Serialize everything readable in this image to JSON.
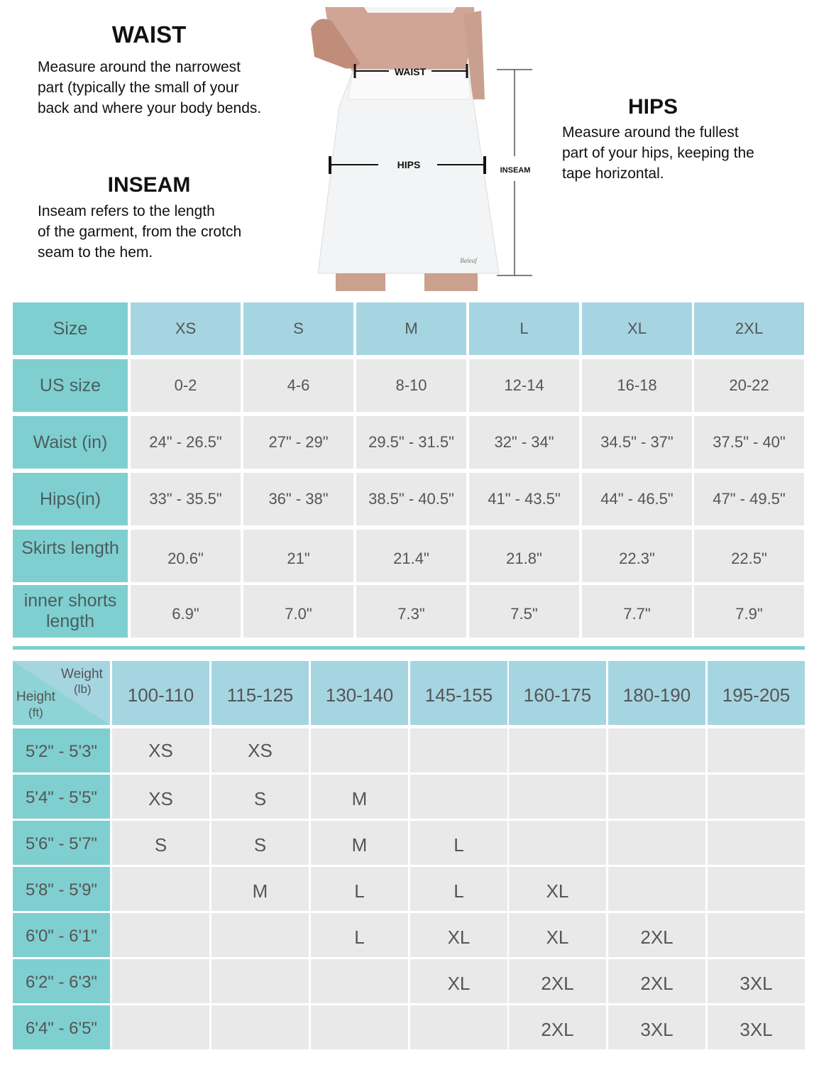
{
  "waist": {
    "title": "WAIST",
    "lines": [
      "Measure around the narrowest",
      "part (typically the small of your",
      "back and where your body bends."
    ]
  },
  "inseam": {
    "title": "INSEAM",
    "lines": [
      "Inseam refers to the length",
      "of the garment, from the crotch",
      "seam to the hem."
    ]
  },
  "hips": {
    "title": "HIPS",
    "lines": [
      "Measure around the fullest",
      "part of your hips, keeping the",
      "tape horizontal."
    ]
  },
  "figure": {
    "waist_label": "WAIST",
    "hips_label": "HIPS",
    "inseam_label": "INSEAM",
    "brand_mark": "Baleaf",
    "skirt_color": "#f4f5f6",
    "skin_color": "#c89a86"
  },
  "size_table": {
    "row_labels": [
      "Size",
      "US size",
      "Waist (in)",
      "Hips(in)",
      "Skirts length",
      "inner shorts length"
    ],
    "sizes": [
      "XS",
      "S",
      "M",
      "L",
      "XL",
      "2XL"
    ],
    "rows": [
      [
        "0-2",
        "4-6",
        "8-10",
        "12-14",
        "16-18",
        "20-22"
      ],
      [
        "24\" - 26.5\"",
        "27\" - 29\"",
        "29.5\" - 31.5\"",
        "32\" - 34\"",
        "34.5\" - 37\"",
        "37.5\" - 40\""
      ],
      [
        "33\" - 35.5\"",
        "36\" - 38\"",
        "38.5\" - 40.5\"",
        "41\" - 43.5\"",
        "44\" - 46.5\"",
        "47\" - 49.5\""
      ],
      [
        "20.6\"",
        "21\"",
        "21.4\"",
        "21.8\"",
        "22.3\"",
        "22.5\""
      ],
      [
        "6.9\"",
        "7.0\"",
        "7.3\"",
        "7.5\"",
        "7.7\"",
        "7.9\""
      ]
    ]
  },
  "fit_table": {
    "corner_weight": "Weight",
    "corner_weight_unit": "(lb)",
    "corner_height": "Height",
    "corner_height_unit": "(ft)",
    "weights": [
      "100-110",
      "115-125",
      "130-140",
      "145-155",
      "160-175",
      "180-190",
      "195-205"
    ],
    "heights": [
      "5'2\" - 5'3\"",
      "5'4\" - 5'5\"",
      "5'6\" - 5'7\"",
      "5'8\" - 5'9\"",
      "6'0\" - 6'1\"",
      "6'2\" - 6'3\"",
      "6'4\" - 6'5\""
    ],
    "cells": [
      [
        "XS",
        "XS",
        "",
        "",
        "",
        "",
        ""
      ],
      [
        "XS",
        "S",
        "M",
        "",
        "",
        "",
        ""
      ],
      [
        "S",
        "S",
        "M",
        "L",
        "",
        "",
        ""
      ],
      [
        "",
        "M",
        "L",
        "L",
        "XL",
        "",
        ""
      ],
      [
        "",
        "",
        "L",
        "XL",
        "XL",
        "2XL",
        ""
      ],
      [
        "",
        "",
        "",
        "XL",
        "2XL",
        "2XL",
        "3XL"
      ],
      [
        "",
        "",
        "",
        "",
        "2XL",
        "3XL",
        "3XL"
      ]
    ],
    "highlight_color": "#f7a037"
  },
  "colors": {
    "teal": "#7fcfd0",
    "light_blue": "#a6d5e2",
    "cell_gray": "#e9e9e9"
  }
}
